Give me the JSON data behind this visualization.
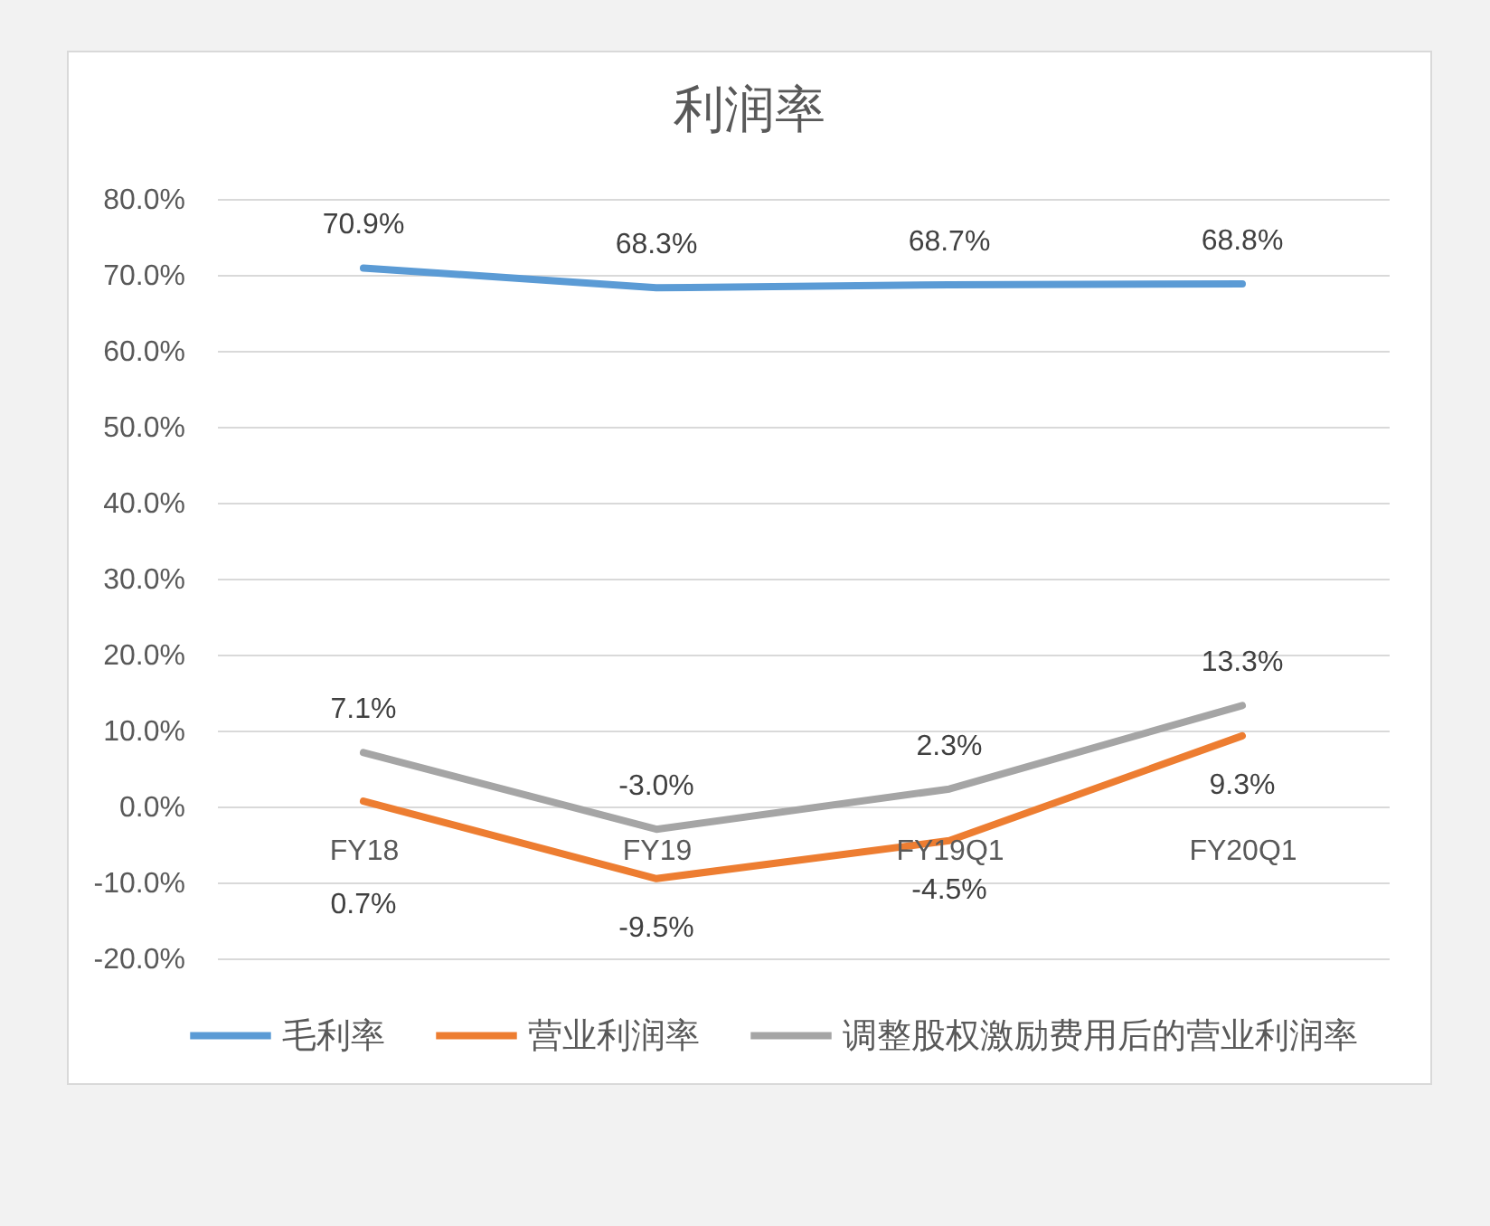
{
  "chart_data": {
    "type": "line",
    "title": "利润率",
    "categories": [
      "FY18",
      "FY19",
      "FY19Q1",
      "FY20Q1"
    ],
    "series": [
      {
        "name": "毛利率",
        "color": "#5b9bd5",
        "values": [
          70.9,
          68.3,
          68.7,
          68.8
        ],
        "value_labels": [
          "70.9%",
          "68.3%",
          "68.7%",
          "68.8%"
        ]
      },
      {
        "name": "营业利润率",
        "color": "#ed7d31",
        "values": [
          0.7,
          -9.5,
          -4.5,
          9.3
        ],
        "value_labels": [
          "0.7%",
          "-9.5%",
          "-4.5%",
          "9.3%"
        ]
      },
      {
        "name": "调整股权激励费用后的营业利润率",
        "color": "#a5a5a5",
        "values": [
          7.1,
          -3.0,
          2.3,
          13.3
        ],
        "value_labels": [
          "7.1%",
          "-3.0%",
          "2.3%",
          "13.3%"
        ]
      }
    ],
    "ylim": [
      -20,
      80
    ],
    "yticks": [
      {
        "value": -20,
        "label": "-20.0%"
      },
      {
        "value": -10,
        "label": "-10.0%"
      },
      {
        "value": 0,
        "label": "0.0%"
      },
      {
        "value": 10,
        "label": "10.0%"
      },
      {
        "value": 20,
        "label": "20.0%"
      },
      {
        "value": 30,
        "label": "30.0%"
      },
      {
        "value": 40,
        "label": "40.0%"
      },
      {
        "value": 50,
        "label": "50.0%"
      },
      {
        "value": 60,
        "label": "60.0%"
      },
      {
        "value": 70,
        "label": "70.0%"
      },
      {
        "value": 80,
        "label": "80.0%"
      }
    ],
    "grid": "y",
    "legend": "bottom"
  }
}
